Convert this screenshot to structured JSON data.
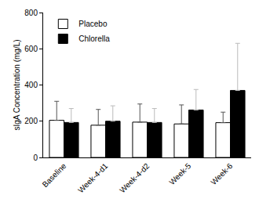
{
  "chart_data": {
    "type": "bar",
    "y_label": "sIgA Concentration (mg/L)",
    "categories": [
      "Baseline",
      "Week-4-d1",
      "Week-4-d2",
      "Week-5",
      "Week-6"
    ],
    "series": [
      {
        "name": "Placebo",
        "color": "#ffffff",
        "values": [
          205,
          178,
          195,
          185,
          192
        ],
        "errors": [
          105,
          87,
          100,
          105,
          58
        ]
      },
      {
        "name": "Chlorella",
        "color": "#000000",
        "values": [
          193,
          200,
          193,
          262,
          370
        ],
        "errors": [
          77,
          85,
          77,
          113,
          260
        ]
      }
    ],
    "ylim": [
      0,
      800
    ],
    "yticks": [
      0,
      200,
      400,
      600,
      800
    ],
    "grid": false,
    "legend": "top-left"
  }
}
